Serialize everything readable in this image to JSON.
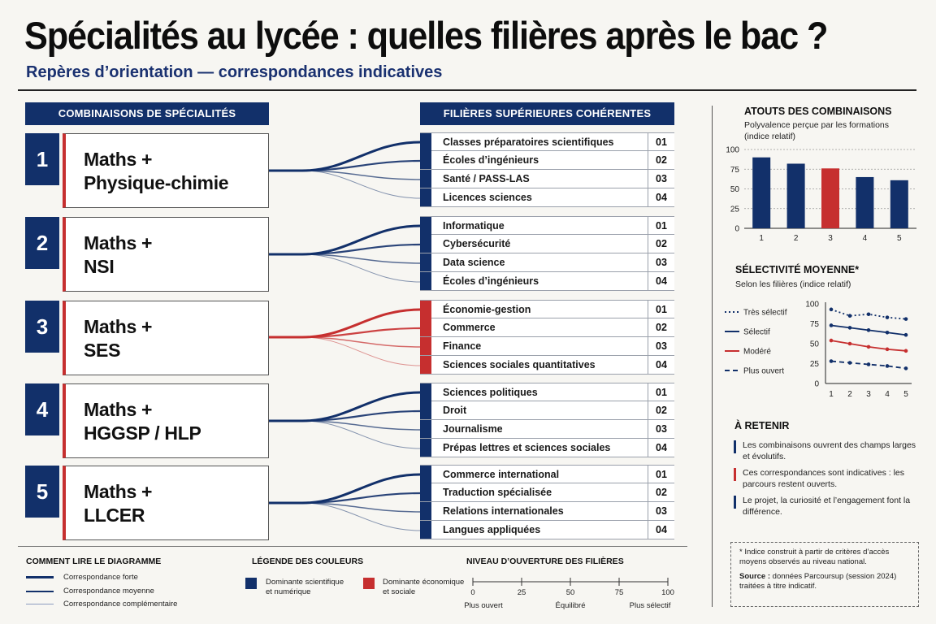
{
  "title": "Spécialités au lycée : quelles filières après le bac ?",
  "subtitle": "Repères d’orientation — correspondances indicatives",
  "left_header": "COMBINAISONS DE SPÉCIALITÉS",
  "right_header": "FILIÈRES SUPÉRIEURES COHÉRENTES",
  "colors": {
    "navy": "#12306a",
    "red": "#c62f2f"
  },
  "combinations": [
    {
      "num": "1",
      "line1": "Maths +",
      "line2": "Physique-chimie",
      "color": "navy",
      "filieres": [
        {
          "label": "Classes préparatoires scientifiques",
          "idx": "01"
        },
        {
          "label": "Écoles d’ingénieurs",
          "idx": "02"
        },
        {
          "label": "Santé / PASS-LAS",
          "idx": "03"
        },
        {
          "label": "Licences sciences",
          "idx": "04"
        }
      ]
    },
    {
      "num": "2",
      "line1": "Maths +",
      "line2": "NSI",
      "color": "navy",
      "filieres": [
        {
          "label": "Informatique",
          "idx": "01"
        },
        {
          "label": "Cybersécurité",
          "idx": "02"
        },
        {
          "label": "Data science",
          "idx": "03"
        },
        {
          "label": "Écoles d’ingénieurs",
          "idx": "04"
        }
      ]
    },
    {
      "num": "3",
      "line1": "Maths +",
      "line2": "SES",
      "color": "red",
      "filieres": [
        {
          "label": "Économie-gestion",
          "idx": "01"
        },
        {
          "label": "Commerce",
          "idx": "02"
        },
        {
          "label": "Finance",
          "idx": "03"
        },
        {
          "label": "Sciences sociales quantitatives",
          "idx": "04"
        }
      ]
    },
    {
      "num": "4",
      "line1": "Maths +",
      "line2": "HGGSP / HLP",
      "color": "navy",
      "filieres": [
        {
          "label": "Sciences politiques",
          "idx": "01"
        },
        {
          "label": "Droit",
          "idx": "02"
        },
        {
          "label": "Journalisme",
          "idx": "03"
        },
        {
          "label": "Prépas lettres et sciences sociales",
          "idx": "04"
        }
      ]
    },
    {
      "num": "5",
      "line1": "Maths +",
      "line2": "LLCER",
      "color": "navy",
      "filieres": [
        {
          "label": "Commerce international",
          "idx": "01"
        },
        {
          "label": "Traduction spécialisée",
          "idx": "02"
        },
        {
          "label": "Relations internationales",
          "idx": "03"
        },
        {
          "label": "Langues appliquées",
          "idx": "04"
        }
      ]
    }
  ],
  "atouts": {
    "title": "ATOUTS DES COMBINAISONS",
    "subtitle_1": "Polyvalence perçue par les formations",
    "subtitle_2": "(indice relatif)"
  },
  "selectivite": {
    "title": "SÉLECTIVITÉ MOYENNE*",
    "subtitle": "Selon les filières (indice relatif)"
  },
  "chart_data": [
    {
      "type": "bar",
      "categories": [
        "1",
        "2",
        "3",
        "4",
        "5"
      ],
      "values": [
        90,
        82,
        76,
        65,
        61
      ],
      "highlight_index": 2,
      "ylim": [
        0,
        100
      ],
      "yticks": [
        0,
        25,
        50,
        75,
        100
      ],
      "grid": true,
      "colors": [
        "#12306a",
        "#12306a",
        "#c62f2f",
        "#12306a",
        "#12306a"
      ]
    },
    {
      "type": "line",
      "x": [
        "1",
        "2",
        "3",
        "4",
        "5"
      ],
      "ylim": [
        0,
        100
      ],
      "yticks": [
        0,
        25,
        50,
        75,
        100
      ],
      "legend_placement": "left",
      "series": [
        {
          "name": "Très sélectif",
          "values": [
            93,
            85,
            87,
            83,
            81
          ],
          "color": "#12306a",
          "style": "dotted"
        },
        {
          "name": "Sélectif",
          "values": [
            73,
            70,
            67,
            64,
            61
          ],
          "color": "#12306a",
          "style": "solid"
        },
        {
          "name": "Modéré",
          "values": [
            54,
            50,
            46,
            43,
            41
          ],
          "color": "#c62f2f",
          "style": "solid"
        },
        {
          "name": "Plus ouvert",
          "values": [
            28,
            26,
            24,
            22,
            19
          ],
          "color": "#12306a",
          "style": "dashed"
        }
      ]
    }
  ],
  "a_retenir": {
    "title": "À RETENIR",
    "items": [
      {
        "text": "Les combinaisons ouvrent des champs larges et évolutifs.",
        "color": "navy"
      },
      {
        "text": "Ces correspondances sont indicatives : les parcours restent ouverts.",
        "color": "red"
      },
      {
        "text": "Le projet, la curiosité et l’engagement font la différence.",
        "color": "navy"
      }
    ]
  },
  "note": {
    "asterisk": "* Indice construit à partir de critères d’accès moyens observés au niveau national.",
    "source_label": "Source :",
    "source_text": "données Parcoursup (session 2024) traitées à titre indicatif."
  },
  "lire": {
    "title": "COMMENT LIRE LE DIAGRAMME",
    "items": [
      "Correspondance forte",
      "Correspondance moyenne",
      "Correspondance complémentaire"
    ]
  },
  "legende": {
    "title": "LÉGENDE DES COULEURS",
    "navy_1": "Dominante scientifique",
    "navy_2": "et numérique",
    "red_1": "Dominante économique",
    "red_2": "et sociale"
  },
  "ouverture": {
    "title": "NIVEAU D’OUVERTURE DES FILIÈRES",
    "ticks": [
      "0",
      "25",
      "50",
      "75",
      "100"
    ],
    "labels": [
      "Plus ouvert",
      "Équilibré",
      "Plus sélectif"
    ]
  }
}
